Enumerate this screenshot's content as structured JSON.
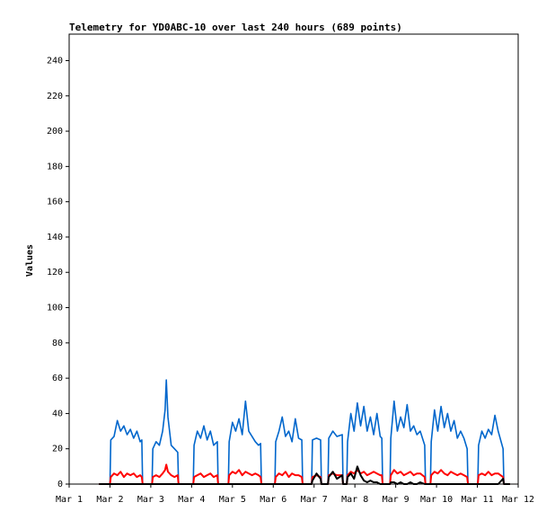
{
  "chart_data": {
    "type": "line",
    "title": "Telemetry for YD0ABC-10 over last 240 hours (689 points)",
    "y_label": "Values",
    "x": [
      1.73,
      2.0,
      2.02,
      2.1,
      2.18,
      2.26,
      2.34,
      2.42,
      2.5,
      2.58,
      2.66,
      2.74,
      2.78,
      2.8,
      3.03,
      3.05,
      3.13,
      3.21,
      3.29,
      3.35,
      3.38,
      3.42,
      3.5,
      3.58,
      3.66,
      3.68,
      4.04,
      4.06,
      4.14,
      4.22,
      4.3,
      4.38,
      4.46,
      4.54,
      4.63,
      4.65,
      4.9,
      4.92,
      5.0,
      5.08,
      5.16,
      5.24,
      5.32,
      5.4,
      5.48,
      5.56,
      5.64,
      5.69,
      5.71,
      6.04,
      6.06,
      6.14,
      6.22,
      6.3,
      6.38,
      6.46,
      6.54,
      6.62,
      6.7,
      6.72,
      6.94,
      6.96,
      7.06,
      7.16,
      7.18,
      7.34,
      7.36,
      7.46,
      7.56,
      7.69,
      7.71,
      7.8,
      7.82,
      7.9,
      7.98,
      8.06,
      8.14,
      8.22,
      8.3,
      8.38,
      8.46,
      8.54,
      8.62,
      8.66,
      8.68,
      8.86,
      8.88,
      8.96,
      9.04,
      9.12,
      9.2,
      9.28,
      9.36,
      9.44,
      9.52,
      9.6,
      9.71,
      9.73,
      9.85,
      9.87,
      9.95,
      10.03,
      10.11,
      10.19,
      10.27,
      10.35,
      10.43,
      10.51,
      10.59,
      10.67,
      10.75,
      10.77,
      11.01,
      11.03,
      11.11,
      11.19,
      11.27,
      11.35,
      11.43,
      11.51,
      11.63,
      11.65,
      11.8
    ],
    "series": [
      {
        "color": "#0066cc",
        "values": [
          0,
          0,
          25,
          27,
          36,
          30,
          33,
          28,
          31,
          26,
          30,
          24,
          25,
          0,
          0,
          20,
          24,
          22,
          30,
          42,
          59,
          38,
          22,
          20,
          18,
          0,
          0,
          22,
          30,
          26,
          33,
          25,
          30,
          22,
          24,
          0,
          0,
          24,
          35,
          30,
          37,
          28,
          47,
          30,
          27,
          24,
          22,
          23,
          0,
          0,
          24,
          30,
          38,
          27,
          30,
          24,
          37,
          26,
          25,
          0,
          0,
          25,
          26,
          25,
          0,
          0,
          26,
          30,
          27,
          28,
          0,
          0,
          24,
          40,
          30,
          46,
          33,
          44,
          30,
          38,
          28,
          40,
          27,
          26,
          0,
          0,
          26,
          47,
          30,
          38,
          32,
          45,
          30,
          33,
          28,
          30,
          22,
          0,
          0,
          24,
          42,
          30,
          44,
          32,
          40,
          30,
          36,
          26,
          30,
          26,
          20,
          0,
          0,
          22,
          30,
          26,
          31,
          28,
          39,
          30,
          20,
          0,
          0
        ]
      },
      {
        "color": "#ff0000",
        "values": [
          0,
          0,
          4,
          6,
          5,
          7,
          4,
          6,
          5,
          6,
          4,
          5,
          4,
          0,
          0,
          4,
          5,
          4,
          6,
          8,
          11,
          7,
          5,
          4,
          5,
          0,
          0,
          4,
          5,
          6,
          4,
          5,
          6,
          4,
          5,
          0,
          0,
          5,
          7,
          6,
          8,
          5,
          7,
          6,
          5,
          6,
          5,
          4,
          0,
          0,
          4,
          6,
          5,
          7,
          4,
          6,
          5,
          5,
          4,
          0,
          0,
          4,
          5,
          4,
          0,
          0,
          5,
          6,
          5,
          5,
          0,
          0,
          5,
          7,
          6,
          8,
          6,
          7,
          5,
          6,
          7,
          6,
          5,
          5,
          0,
          0,
          5,
          8,
          6,
          7,
          5,
          6,
          7,
          5,
          6,
          6,
          4,
          0,
          0,
          5,
          7,
          6,
          8,
          6,
          5,
          7,
          6,
          5,
          6,
          5,
          4,
          0,
          0,
          5,
          6,
          5,
          7,
          5,
          6,
          6,
          4,
          0,
          0
        ]
      },
      {
        "color": "#000000",
        "values": [
          0,
          0,
          0,
          0,
          0,
          0,
          0,
          0,
          0,
          0,
          0,
          0,
          0,
          0,
          0,
          0,
          0,
          0,
          0,
          0,
          0,
          0,
          0,
          0,
          0,
          0,
          0,
          0,
          0,
          0,
          0,
          0,
          0,
          0,
          0,
          0,
          0,
          0,
          0,
          0,
          0,
          0,
          0,
          0,
          0,
          0,
          0,
          0,
          0,
          0,
          0,
          0,
          0,
          0,
          0,
          0,
          0,
          0,
          0,
          0,
          0,
          2,
          6,
          3,
          0,
          0,
          4,
          7,
          3,
          5,
          0,
          0,
          4,
          6,
          3,
          10,
          5,
          2,
          1,
          2,
          1,
          1,
          0,
          0,
          0,
          0,
          1,
          1,
          0,
          1,
          0,
          0,
          1,
          0,
          0,
          1,
          0,
          0,
          0,
          0,
          0,
          0,
          0,
          0,
          0,
          0,
          0,
          0,
          0,
          0,
          0,
          0,
          0,
          0,
          0,
          0,
          0,
          0,
          0,
          0,
          3,
          0,
          0
        ]
      }
    ],
    "xlim": [
      1,
      12
    ],
    "xticks": [
      {
        "value": 1,
        "label": "Mar 1"
      },
      {
        "value": 2,
        "label": "Mar 2"
      },
      {
        "value": 3,
        "label": "Mar 3"
      },
      {
        "value": 4,
        "label": "Mar 4"
      },
      {
        "value": 5,
        "label": "Mar 5"
      },
      {
        "value": 6,
        "label": "Mar 6"
      },
      {
        "value": 7,
        "label": "Mar 7"
      },
      {
        "value": 8,
        "label": "Mar 8"
      },
      {
        "value": 9,
        "label": "Mar 9"
      },
      {
        "value": 10,
        "label": "Mar 10"
      },
      {
        "value": 11,
        "label": "Mar 11"
      },
      {
        "value": 12,
        "label": "Mar 12"
      }
    ],
    "ylim": [
      0,
      255
    ],
    "yticks": [
      0,
      20,
      40,
      60,
      80,
      100,
      120,
      140,
      160,
      180,
      200,
      220,
      240
    ],
    "grid": false
  }
}
